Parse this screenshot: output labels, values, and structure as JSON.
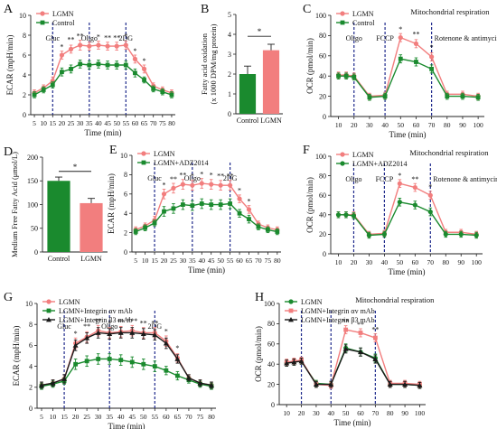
{
  "colors": {
    "pink": "#f27e7e",
    "green": "#1a8a2e",
    "black": "#1a1a1a",
    "axis": "#222222",
    "injection": "#1f2a8c"
  },
  "chart_data": [
    {
      "panel": "A",
      "type": "line",
      "ylabel": "ECAR (mpH/min)",
      "xlabel": "Time (min)",
      "ylim": [
        0,
        10
      ],
      "yticks": [
        0,
        2,
        4,
        6,
        8,
        10
      ],
      "xlim": [
        3,
        82
      ],
      "xticks": [
        5,
        10,
        15,
        20,
        25,
        30,
        35,
        40,
        45,
        50,
        55,
        60,
        65,
        70,
        75,
        80
      ],
      "x": [
        5,
        10,
        15,
        20,
        25,
        30,
        35,
        40,
        45,
        50,
        55,
        60,
        65,
        70,
        75,
        80
      ],
      "series": [
        {
          "name": "LGMN",
          "color": "pink",
          "marker": "circle",
          "values": [
            2.2,
            2.7,
            3.4,
            6.0,
            6.6,
            7.0,
            6.9,
            7.0,
            6.9,
            6.9,
            7.0,
            5.6,
            4.6,
            2.9,
            2.5,
            2.2
          ],
          "errors": [
            0.3,
            0.3,
            0.4,
            0.4,
            0.4,
            0.5,
            0.4,
            0.4,
            0.4,
            0.4,
            0.4,
            0.4,
            0.4,
            0.3,
            0.3,
            0.3
          ]
        },
        {
          "name": "Control",
          "color": "green",
          "marker": "square",
          "values": [
            2.0,
            2.5,
            3.0,
            4.3,
            4.6,
            5.1,
            5.0,
            5.1,
            5.0,
            5.0,
            5.0,
            4.2,
            3.5,
            2.6,
            2.3,
            2.0
          ],
          "errors": [
            0.3,
            0.3,
            0.3,
            0.4,
            0.4,
            0.4,
            0.4,
            0.4,
            0.4,
            0.4,
            0.4,
            0.4,
            0.3,
            0.3,
            0.3,
            0.3
          ]
        }
      ],
      "injections": [
        {
          "label": "Gluc",
          "x": 15
        },
        {
          "label": "Oligo",
          "x": 35
        },
        {
          "label": "2DG",
          "x": 55
        }
      ],
      "significance": [
        {
          "x": 20,
          "text": "*",
          "y": 6.6
        },
        {
          "x": 25,
          "text": "**",
          "y": 7.3
        },
        {
          "x": 30,
          "text": "**",
          "y": 7.7
        },
        {
          "x": 40,
          "text": "*",
          "y": 7.6
        },
        {
          "x": 45,
          "text": "**",
          "y": 7.5
        },
        {
          "x": 50,
          "text": "**",
          "y": 7.5
        },
        {
          "x": 55,
          "text": "*",
          "y": 7.7
        },
        {
          "x": 60,
          "text": "*",
          "y": 6.2
        },
        {
          "x": 65,
          "text": "*",
          "y": 5.2
        }
      ],
      "legend": "top-left"
    },
    {
      "panel": "B",
      "type": "bar",
      "ylabel": "Fatty acid oxidation\n(x 1000 DPM/mg protein)",
      "ylim": [
        0,
        5
      ],
      "yticks": [
        0,
        1,
        2,
        3,
        4,
        5
      ],
      "categories": [
        "Control",
        "LGMN"
      ],
      "values": [
        2.0,
        3.2
      ],
      "errors": [
        0.4,
        0.3
      ],
      "bar_colors": [
        "green",
        "pink"
      ],
      "significance": [
        {
          "from": 0,
          "to": 1,
          "text": "*",
          "y": 3.9
        }
      ]
    },
    {
      "panel": "C",
      "type": "line",
      "title": "Mitochondrial respiration",
      "ylabel": "OCR (pmol/min)",
      "xlabel": "Time (min)",
      "ylim": [
        0,
        100
      ],
      "yticks": [
        0,
        20,
        40,
        60,
        80,
        100
      ],
      "xlim": [
        5,
        104
      ],
      "xticks": [
        10,
        20,
        30,
        40,
        50,
        60,
        70,
        80,
        90,
        100
      ],
      "x": [
        10,
        15,
        20,
        30,
        40,
        50,
        60,
        70,
        80,
        90,
        100
      ],
      "series": [
        {
          "name": "LGMN",
          "color": "pink",
          "marker": "circle",
          "values": [
            41,
            41,
            40,
            20,
            21,
            78,
            72,
            59,
            22,
            22,
            20
          ],
          "errors": [
            3,
            3,
            3,
            3,
            3,
            4,
            4,
            4,
            3,
            3,
            3
          ]
        },
        {
          "name": "Control",
          "color": "green",
          "marker": "square",
          "values": [
            40,
            40,
            39,
            19,
            20,
            57,
            54,
            47,
            20,
            20,
            19
          ],
          "errors": [
            3,
            3,
            3,
            3,
            3,
            4,
            4,
            4,
            3,
            3,
            3
          ]
        }
      ],
      "injections": [
        {
          "label": "Oligo",
          "x": 20
        },
        {
          "label": "FCCP",
          "x": 40
        },
        {
          "label": "Rotenone & antimycin A",
          "x": 70
        }
      ],
      "significance": [
        {
          "x": 50,
          "text": "*",
          "y": 84
        },
        {
          "x": 60,
          "text": "**",
          "y": 79
        },
        {
          "x": 70,
          "text": "*",
          "y": 66
        }
      ],
      "legend": "top-left"
    },
    {
      "panel": "D",
      "type": "bar",
      "ylabel": "Medium Free Fatty Acid (μmol/L)",
      "ylim": [
        0,
        200
      ],
      "yticks": [
        0,
        50,
        100,
        150,
        200
      ],
      "categories": [
        "Control",
        "LGMN"
      ],
      "values": [
        150,
        103
      ],
      "errors": [
        8,
        10
      ],
      "bar_colors": [
        "green",
        "pink"
      ],
      "significance": [
        {
          "from": 0,
          "to": 1,
          "text": "*",
          "y": 170
        }
      ]
    },
    {
      "panel": "E",
      "type": "line",
      "ylabel": "ECAR (mpH/min)",
      "xlabel": "Time (min)",
      "ylim": [
        0,
        10
      ],
      "yticks": [
        0,
        2,
        4,
        6,
        8,
        10
      ],
      "xlim": [
        3,
        82
      ],
      "xticks": [
        5,
        10,
        15,
        20,
        25,
        30,
        35,
        40,
        45,
        50,
        55,
        60,
        65,
        70,
        75,
        80
      ],
      "x": [
        5,
        10,
        15,
        20,
        25,
        30,
        35,
        40,
        45,
        50,
        55,
        60,
        65,
        70,
        75,
        80
      ],
      "series": [
        {
          "name": "LGMN",
          "color": "pink",
          "marker": "circle",
          "values": [
            2.3,
            2.7,
            3.3,
            6.0,
            6.6,
            7.0,
            6.9,
            7.1,
            7.0,
            6.9,
            6.9,
            5.5,
            4.4,
            2.9,
            2.5,
            2.3
          ],
          "errors": [
            0.3,
            0.3,
            0.4,
            0.5,
            0.5,
            0.5,
            0.5,
            0.5,
            0.5,
            0.5,
            0.5,
            0.4,
            0.4,
            0.3,
            0.3,
            0.3
          ]
        },
        {
          "name": "LGMN+ADZ2014",
          "color": "green",
          "marker": "square",
          "values": [
            2.1,
            2.5,
            3.0,
            4.2,
            4.5,
            4.9,
            4.8,
            5.0,
            4.9,
            4.9,
            5.0,
            4.0,
            3.4,
            2.6,
            2.3,
            2.1
          ],
          "errors": [
            0.3,
            0.3,
            0.3,
            0.5,
            0.5,
            0.5,
            0.5,
            0.5,
            0.5,
            0.5,
            0.5,
            0.4,
            0.4,
            0.3,
            0.3,
            0.3
          ]
        }
      ],
      "injections": [
        {
          "label": "Gluc",
          "x": 15
        },
        {
          "label": "Oligo",
          "x": 35
        },
        {
          "label": "2DG",
          "x": 55
        }
      ],
      "significance": [
        {
          "x": 20,
          "text": "*",
          "y": 6.7
        },
        {
          "x": 25,
          "text": "**",
          "y": 7.3
        },
        {
          "x": 30,
          "text": "**",
          "y": 7.7
        },
        {
          "x": 35,
          "text": "*",
          "y": 7.6
        },
        {
          "x": 40,
          "text": "*",
          "y": 7.8
        },
        {
          "x": 45,
          "text": "*",
          "y": 7.7
        },
        {
          "x": 50,
          "text": "**",
          "y": 7.6
        },
        {
          "x": 55,
          "text": "**",
          "y": 7.6
        },
        {
          "x": 60,
          "text": "*",
          "y": 6.1
        },
        {
          "x": 65,
          "text": "*",
          "y": 5.0
        }
      ],
      "legend": "top-left"
    },
    {
      "panel": "F",
      "type": "line",
      "title": "Mitochondrial respiration",
      "ylabel": "OCR (pmol/min)",
      "xlabel": "Time (min)",
      "ylim": [
        0,
        100
      ],
      "yticks": [
        0,
        20,
        40,
        60,
        80,
        100
      ],
      "xlim": [
        5,
        104
      ],
      "xticks": [
        10,
        20,
        30,
        40,
        50,
        60,
        70,
        80,
        90,
        100
      ],
      "x": [
        10,
        15,
        20,
        30,
        40,
        50,
        60,
        70,
        80,
        90,
        100
      ],
      "series": [
        {
          "name": "LGMN",
          "color": "pink",
          "marker": "circle",
          "values": [
            40,
            40,
            40,
            20,
            21,
            72,
            68,
            60,
            22,
            22,
            20
          ],
          "errors": [
            3,
            3,
            3,
            3,
            3,
            4,
            4,
            4,
            3,
            3,
            3
          ]
        },
        {
          "name": "LGMN+ADZ2014",
          "color": "green",
          "marker": "circle",
          "values": [
            40,
            40,
            39,
            19,
            20,
            53,
            50,
            43,
            20,
            20,
            19
          ],
          "errors": [
            3,
            3,
            3,
            3,
            3,
            4,
            4,
            4,
            3,
            3,
            3
          ]
        }
      ],
      "injections": [
        {
          "label": "Oligo",
          "x": 20
        },
        {
          "label": "FCCP",
          "x": 40
        },
        {
          "label": "Rotenone & antimycin A",
          "x": 70
        }
      ],
      "significance": [
        {
          "x": 50,
          "text": "*",
          "y": 78
        },
        {
          "x": 60,
          "text": "**",
          "y": 74
        },
        {
          "x": 70,
          "text": "*",
          "y": 66
        }
      ],
      "legend": "top-left"
    },
    {
      "panel": "G",
      "type": "line",
      "ylabel": "ECAR (mpH/min)",
      "xlabel": "Time (min)",
      "ylim": [
        0,
        10
      ],
      "yticks": [
        0,
        2,
        4,
        6,
        8,
        10
      ],
      "xlim": [
        3,
        82
      ],
      "xticks": [
        5,
        10,
        15,
        20,
        25,
        30,
        35,
        40,
        45,
        50,
        55,
        60,
        65,
        70,
        75,
        80
      ],
      "x": [
        5,
        10,
        15,
        20,
        25,
        30,
        35,
        40,
        45,
        50,
        55,
        60,
        65,
        70,
        75,
        80
      ],
      "series": [
        {
          "name": "LGMN",
          "color": "pink",
          "marker": "circle",
          "values": [
            2.2,
            2.4,
            2.8,
            6.2,
            6.8,
            7.4,
            7.2,
            7.3,
            7.4,
            7.2,
            7.2,
            6.4,
            4.8,
            2.9,
            2.4,
            2.2
          ],
          "errors": [
            0.3,
            0.3,
            0.4,
            0.5,
            0.5,
            0.5,
            0.5,
            0.5,
            0.5,
            0.5,
            0.5,
            0.5,
            0.4,
            0.3,
            0.3,
            0.3
          ]
        },
        {
          "name": "LGMN+Integrin αv mAb",
          "color": "green",
          "marker": "square",
          "values": [
            2.1,
            2.3,
            2.6,
            4.2,
            4.5,
            4.7,
            4.7,
            4.6,
            4.4,
            4.2,
            4.0,
            3.6,
            3.1,
            2.7,
            2.3,
            2.1
          ],
          "errors": [
            0.3,
            0.3,
            0.3,
            0.5,
            0.5,
            0.5,
            0.5,
            0.5,
            0.5,
            0.5,
            0.5,
            0.4,
            0.4,
            0.3,
            0.3,
            0.3
          ]
        },
        {
          "name": "LGMN+Integrin β3 mAb",
          "color": "black",
          "marker": "triangle",
          "values": [
            2.2,
            2.4,
            2.8,
            6.0,
            6.7,
            7.2,
            7.1,
            7.2,
            7.2,
            7.1,
            7.0,
            6.2,
            4.7,
            2.9,
            2.4,
            2.2
          ],
          "errors": [
            0.3,
            0.3,
            0.4,
            0.5,
            0.5,
            0.5,
            0.5,
            0.5,
            0.5,
            0.5,
            0.5,
            0.5,
            0.4,
            0.3,
            0.3,
            0.3
          ]
        }
      ],
      "injections": [
        {
          "label": "Gluc",
          "x": 15
        },
        {
          "label": "Oligo",
          "x": 35
        },
        {
          "label": "2DG",
          "x": 55
        }
      ],
      "significance": [
        {
          "x": 20,
          "text": "*",
          "y": 6.9
        },
        {
          "x": 25,
          "text": "**",
          "y": 7.6
        },
        {
          "x": 30,
          "text": "**",
          "y": 8.1
        },
        {
          "x": 35,
          "text": "*",
          "y": 7.9
        },
        {
          "x": 40,
          "text": "**",
          "y": 8.0
        },
        {
          "x": 45,
          "text": "***",
          "y": 8.1
        },
        {
          "x": 50,
          "text": "**",
          "y": 7.9
        },
        {
          "x": 55,
          "text": "**",
          "y": 7.9
        },
        {
          "x": 60,
          "text": "*",
          "y": 7.1
        },
        {
          "x": 65,
          "text": "*",
          "y": 5.5
        }
      ],
      "legend": "top-left"
    },
    {
      "panel": "H",
      "type": "line",
      "title": "Mitochondrial respiration",
      "ylabel": "OCR (pmol/min)",
      "xlabel": "Time (min)",
      "ylim": [
        0,
        100
      ],
      "yticks": [
        0,
        20,
        40,
        60,
        80,
        100
      ],
      "xlim": [
        5,
        104
      ],
      "xticks": [
        10,
        20,
        30,
        40,
        50,
        60,
        70,
        80,
        90,
        100
      ],
      "x": [
        10,
        15,
        20,
        30,
        40,
        50,
        60,
        70,
        80,
        90,
        100
      ],
      "series": [
        {
          "name": "LGMN",
          "color": "green",
          "marker": "circle",
          "values": [
            41,
            42,
            43,
            21,
            20,
            56,
            52,
            46,
            20,
            20,
            19
          ],
          "errors": [
            3,
            3,
            3,
            3,
            3,
            4,
            4,
            4,
            3,
            3,
            3
          ]
        },
        {
          "name": "LGMN+Integrin αv mAb",
          "color": "pink",
          "marker": "square",
          "values": [
            42,
            43,
            44,
            20,
            19,
            74,
            71,
            66,
            21,
            21,
            20
          ],
          "errors": [
            3,
            3,
            3,
            3,
            3,
            4,
            4,
            4,
            3,
            3,
            3
          ]
        },
        {
          "name": "LGMN+Integrin β3 mAb",
          "color": "black",
          "marker": "triangle",
          "values": [
            41,
            42,
            43,
            20,
            20,
            55,
            52,
            45,
            20,
            20,
            19
          ],
          "errors": [
            3,
            3,
            3,
            3,
            3,
            4,
            4,
            4,
            3,
            3,
            3
          ]
        }
      ],
      "injections": [
        {
          "x": 20
        },
        {
          "x": 40
        },
        {
          "x": 70
        }
      ],
      "significance": [
        {
          "x": 50,
          "text": "**",
          "y": 80
        },
        {
          "x": 60,
          "text": "**",
          "y": 77
        },
        {
          "x": 70,
          "text": "**",
          "y": 72
        }
      ],
      "legend": "top-left"
    }
  ]
}
